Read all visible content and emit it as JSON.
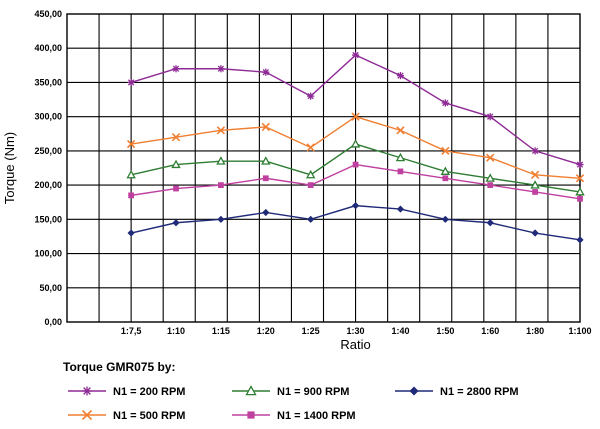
{
  "chart_data": {
    "type": "line",
    "title": "",
    "xlabel": "Ratio",
    "ylabel": "Torque (Nm)",
    "ylim": [
      0,
      450
    ],
    "y_ticks": [
      "0,00",
      "50,00",
      "100,00",
      "150,00",
      "200,00",
      "250,00",
      "300,00",
      "350,00",
      "400,00",
      "450,00"
    ],
    "categories": [
      "1:7,5",
      "1:10",
      "1:15",
      "1:20",
      "1:25",
      "1:30",
      "1:40",
      "1:50",
      "1:60",
      "1:80",
      "1:100"
    ],
    "grid": true,
    "legend_position": "bottom",
    "legend_title": "Torque GMR075 by:",
    "series": [
      {
        "name": "N1 = 200 RPM",
        "color": "#8e2a95",
        "marker": "asterisk",
        "values": [
          350,
          370,
          370,
          365,
          330,
          390,
          360,
          320,
          300,
          250,
          230
        ]
      },
      {
        "name": "N1 = 500 RPM",
        "color": "#f07f32",
        "marker": "x",
        "values": [
          260,
          270,
          280,
          285,
          255,
          300,
          280,
          250,
          240,
          215,
          210
        ]
      },
      {
        "name": "N1 = 900 RPM",
        "color": "#2e7d32",
        "marker": "triangle",
        "values": [
          215,
          230,
          235,
          235,
          215,
          260,
          240,
          220,
          210,
          200,
          190
        ]
      },
      {
        "name": "N1 = 1400 RPM",
        "color": "#c040a0",
        "marker": "square",
        "values": [
          185,
          195,
          200,
          210,
          200,
          230,
          220,
          210,
          200,
          190,
          180
        ]
      },
      {
        "name": "N1 = 2800 RPM",
        "color": "#1f2a78",
        "marker": "diamond",
        "values": [
          130,
          145,
          150,
          160,
          150,
          170,
          165,
          150,
          145,
          130,
          120
        ]
      }
    ]
  }
}
